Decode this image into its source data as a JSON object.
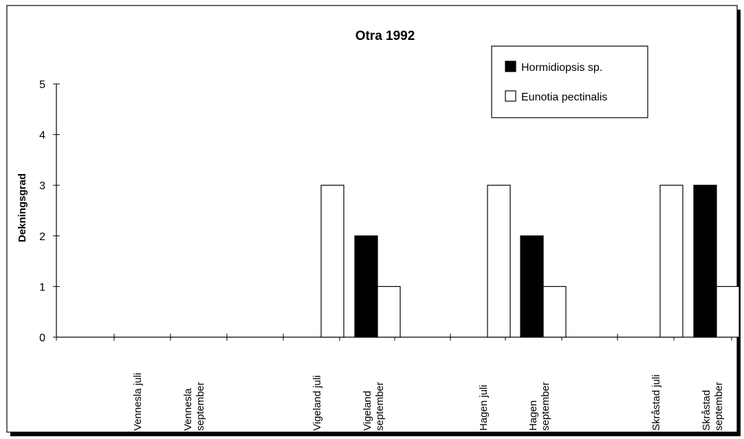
{
  "chart_data": {
    "type": "bar",
    "title": "Otra 1992",
    "xlabel": "",
    "ylabel": "Dekningsgrad",
    "ylim": [
      0,
      5
    ],
    "yticks": [
      0,
      1,
      2,
      3,
      4,
      5
    ],
    "grid": false,
    "legend_position": "top-right",
    "categories": [
      "Vennesla juli",
      "Vennesla september",
      "Vigeland juli",
      "Vigeland september",
      "Hagen juli",
      "Hagen september",
      "Skråstad juli",
      "Skråstad september"
    ],
    "series": [
      {
        "name": "Hormidiopsis sp.",
        "color": "#000000",
        "values": [
          0,
          0,
          0,
          2,
          0,
          2,
          0,
          3
        ]
      },
      {
        "name": "Eunotia pectinalis",
        "color": "#ffffff",
        "values": [
          0,
          0,
          3,
          1,
          3,
          1,
          3,
          1
        ]
      }
    ]
  }
}
